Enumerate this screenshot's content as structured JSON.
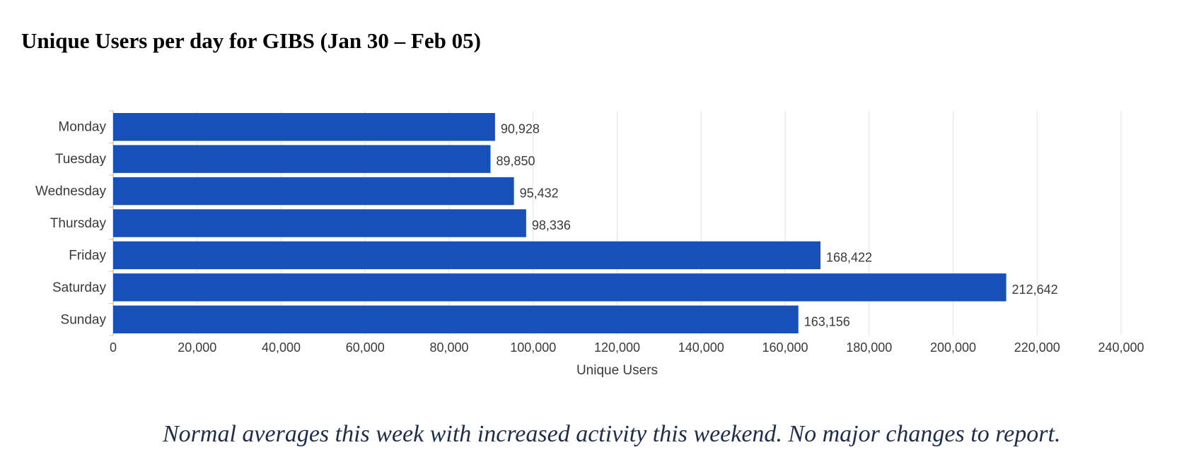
{
  "title": "Unique Users per day for GIBS (Jan 30 – Feb 05)",
  "caption": "Normal averages this week with increased activity this weekend.  No major changes to report.",
  "colors": {
    "bar": "#1750b8",
    "grid": "#e2e2e2",
    "text": "#3a3a3a",
    "axis": "#c7c7c7"
  },
  "chart_data": {
    "type": "bar",
    "orientation": "horizontal",
    "categories": [
      "Monday",
      "Tuesday",
      "Wednesday",
      "Thursday",
      "Friday",
      "Saturday",
      "Sunday"
    ],
    "values": [
      90928,
      89850,
      95432,
      98336,
      168422,
      212642,
      163156
    ],
    "value_labels": [
      "90,928",
      "89,850",
      "95,432",
      "98,336",
      "168,422",
      "212,642",
      "163,156"
    ],
    "xlabel": "Unique Users",
    "ylabel": "",
    "xlim": [
      0,
      240000
    ],
    "x_ticks": [
      0,
      20000,
      40000,
      60000,
      80000,
      100000,
      120000,
      140000,
      160000,
      180000,
      200000,
      220000,
      240000
    ],
    "x_tick_labels": [
      "0",
      "20,000",
      "40,000",
      "60,000",
      "80,000",
      "100,000",
      "120,000",
      "140,000",
      "160,000",
      "180,000",
      "200,000",
      "220,000",
      "240,000"
    ],
    "grid": true,
    "legend": "none"
  }
}
